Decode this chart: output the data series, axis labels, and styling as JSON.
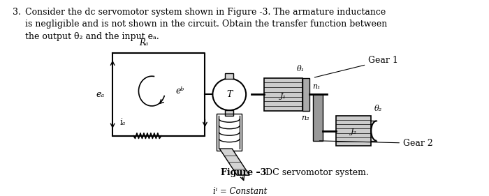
{
  "bg_color": "#ffffff",
  "text_color": "#000000",
  "fig_width": 7.0,
  "fig_height": 2.81,
  "dpi": 100,
  "problem_number": "3.",
  "problem_text_line1": "Consider the dc servomotor system shown in Figure -3. The armature inductance",
  "problem_text_line2": "is negligible and is not shown in the circuit. Obtain the transfer function between",
  "problem_text_line3": "the output θ₂ and the input eₐ.",
  "figure_caption_bold": "Figure –3",
  "figure_caption_normal": " DC servomotor system.",
  "gear1_label": "Gear 1",
  "gear2_label": "Gear 2",
  "if_label": "iⁱ = Constant",
  "Ra_label": "Rₐ",
  "eb_label": "eᵇ",
  "ea_label": "eₐ",
  "ia_label": "iₐ",
  "T_label": "T",
  "theta1_label": "θ₁",
  "n1_label": "n₁",
  "theta2_label": "θ₂",
  "n2_label": "n₂",
  "J1_label": "J₁",
  "J2_label": "J₂"
}
